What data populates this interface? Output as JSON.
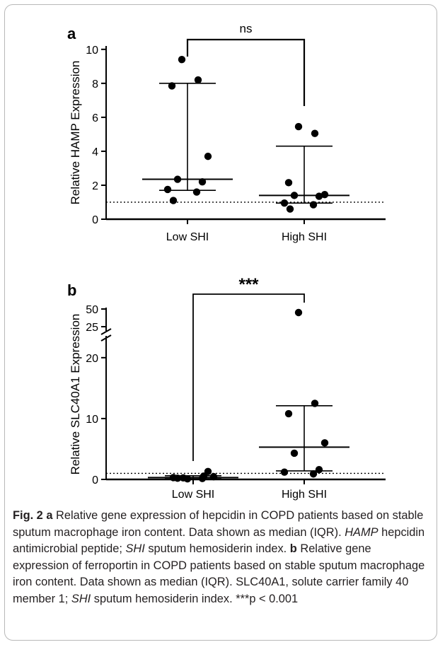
{
  "chart_data": [
    {
      "panel_label": "a",
      "type": "scatter",
      "ylabel": "Relative HAMP Expression",
      "categories": [
        "Low SHI",
        "High SHI"
      ],
      "yticks": [
        0,
        2,
        4,
        6,
        8,
        10
      ],
      "ylim": [
        0,
        10.2
      ],
      "reference_line": 1,
      "series": [
        {
          "category": "Low SHI",
          "values": [
            9.4,
            8.2,
            7.85,
            3.7,
            2.35,
            2.2,
            1.75,
            1.6,
            1.1
          ],
          "median": 2.35,
          "q1": 1.7,
          "q3": 8.0
        },
        {
          "category": "High SHI",
          "values": [
            5.45,
            5.05,
            2.15,
            1.45,
            1.4,
            1.35,
            0.95,
            0.85,
            0.6
          ],
          "median": 1.4,
          "q1": 0.95,
          "q3": 4.3
        }
      ],
      "significance": "ns"
    },
    {
      "panel_label": "b",
      "type": "scatter",
      "ylabel": "Relative SLC40A1 Expression",
      "categories": [
        "Low SHI",
        "High SHI"
      ],
      "yticks_lower": [
        0,
        10,
        20
      ],
      "yticks_upper": [
        25,
        50
      ],
      "axis_break": [
        23,
        25
      ],
      "ylim_lower": [
        0,
        23
      ],
      "reference_line": 1,
      "series": [
        {
          "category": "Low SHI",
          "values": [
            0.1,
            0.55,
            0.2,
            0.45,
            0.25,
            1.3,
            0.3,
            0.15
          ],
          "median": 0.3,
          "q1": 0.1,
          "q3": 0.6
        },
        {
          "category": "High SHI",
          "values": [
            45,
            12.5,
            10.8,
            6.0,
            4.3,
            1.6,
            1.2,
            0.9
          ],
          "median": 5.3,
          "q1": 1.4,
          "q3": 12.1
        }
      ],
      "significance": "***"
    }
  ],
  "caption": {
    "fig_label": "Fig. 2",
    "seg1_panel": "a",
    "seg1_text": " Relative gene expression of hepcidin in COPD patients based on stable sputum macrophage iron content. Data shown as median (IQR). ",
    "seg1_abbr1": "HAMP",
    "seg1_text2": " hepcidin antimicrobial peptide; ",
    "seg1_abbr2": "SHI",
    "seg1_text3": " sputum hemosiderin index. ",
    "seg2_panel": "b",
    "seg2_text": " Relative gene expression of ferroportin in COPD patients based on stable sputum macrophage iron content. Data shown as median (IQR). SLC40A1, solute carrier family 40 member 1; ",
    "seg2_abbr": "SHI",
    "seg2_text2": " sputum hemosiderin index. ***p < 0.001"
  }
}
